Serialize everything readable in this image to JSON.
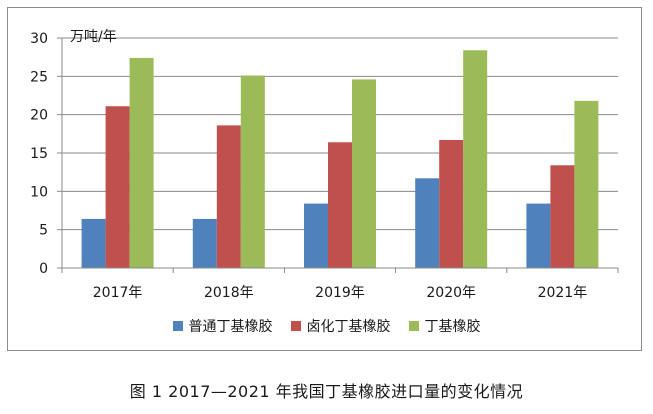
{
  "chart_data": {
    "type": "bar",
    "categories": [
      "2017年",
      "2018年",
      "2019年",
      "2020年",
      "2021年"
    ],
    "series": [
      {
        "name": "普通丁基橡胶",
        "color": "#4f81bd",
        "values": [
          6.4,
          6.4,
          8.4,
          11.7,
          8.4
        ]
      },
      {
        "name": "卤化丁基橡胶",
        "color": "#c0504d",
        "values": [
          21.1,
          18.6,
          16.4,
          16.7,
          13.4
        ]
      },
      {
        "name": "丁基橡胶",
        "color": "#9bbb59",
        "values": [
          27.4,
          25.1,
          24.6,
          28.4,
          21.8
        ]
      }
    ],
    "ylabel": "万吨/年",
    "ylim": [
      0,
      30
    ],
    "yticks": [
      "0",
      "5",
      "10",
      "15",
      "20",
      "25",
      "30"
    ],
    "grid": true,
    "legend": "bottom"
  },
  "caption": "图 1 2017—2021 年我国丁基橡胶进口量的变化情况"
}
